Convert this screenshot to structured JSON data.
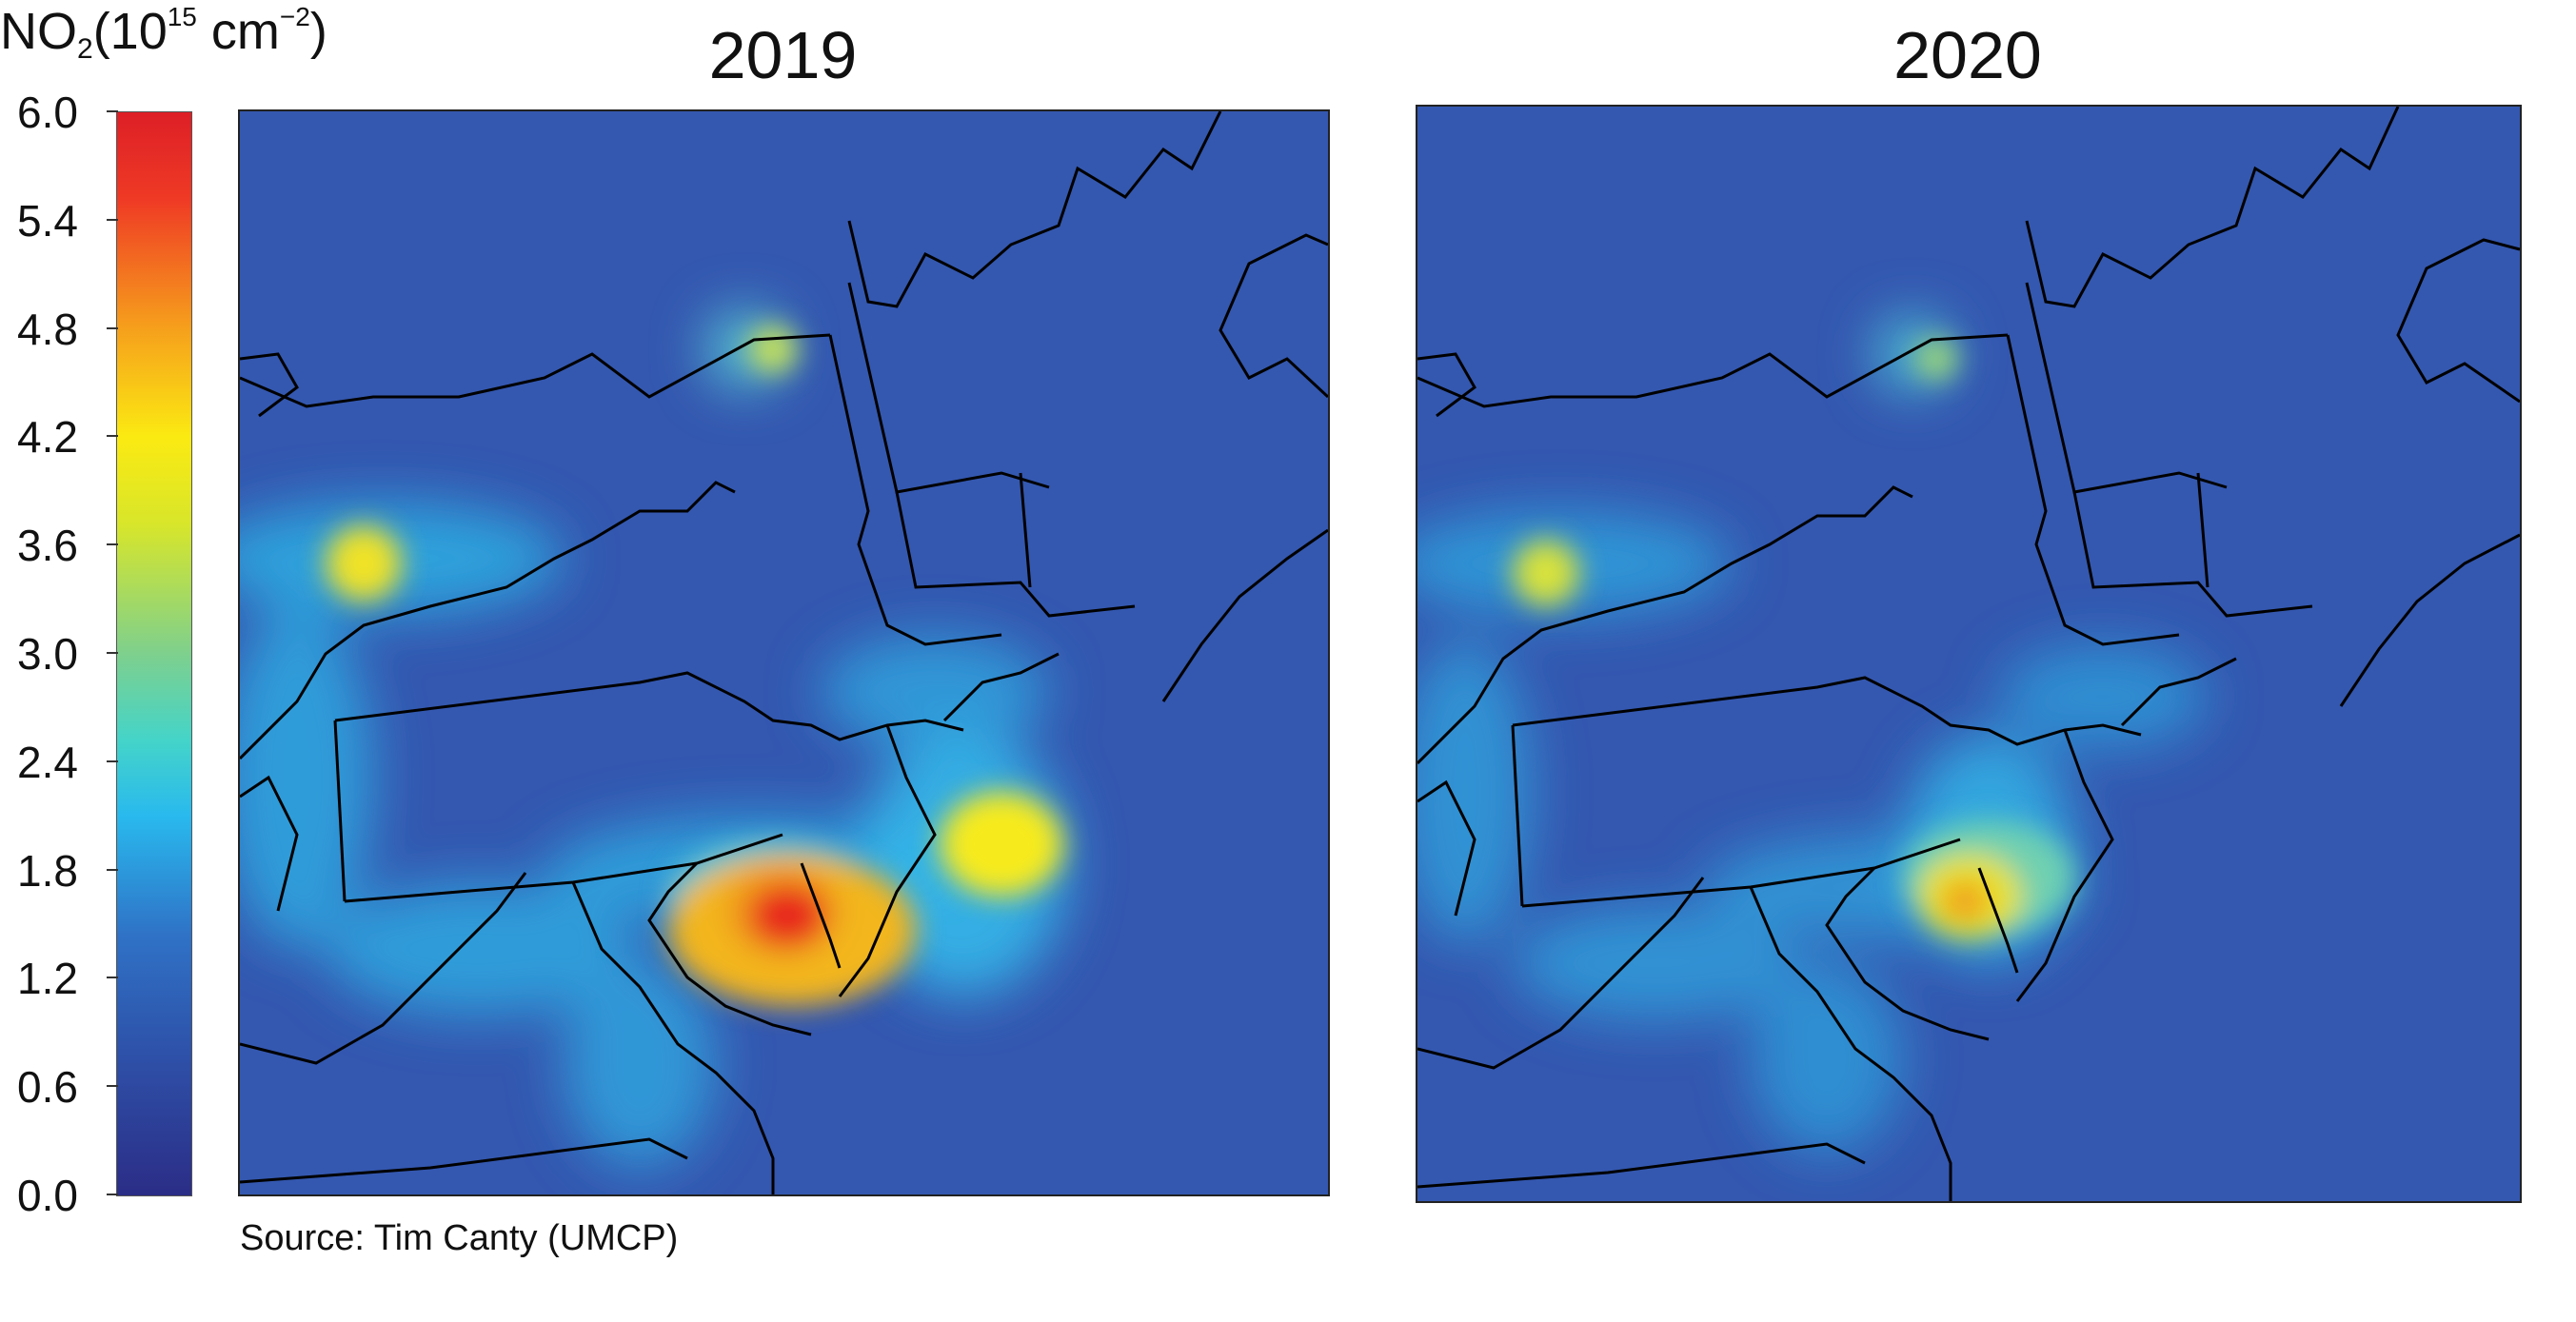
{
  "colorbar": {
    "title_main": "NO",
    "title_sub": "2",
    "title_unit_open": "(10",
    "title_exp": "15",
    "title_unit": " cm",
    "title_unit_exp": "−2",
    "title_close": ")",
    "ticks": [
      "6.0",
      "5.4",
      "4.8",
      "4.2",
      "3.6",
      "3.0",
      "2.4",
      "1.8",
      "1.2",
      "0.6",
      "0.0"
    ],
    "range": [
      0.0,
      6.0
    ],
    "colors": [
      "#2b2d86",
      "#2f72c6",
      "#29b9ee",
      "#7ed08d",
      "#fbea12",
      "#f6a01c",
      "#dd1f26"
    ]
  },
  "panels": [
    {
      "title": "2019",
      "background": "#3458b0"
    },
    {
      "title": "2020",
      "background": "#3458b0"
    }
  ],
  "source": "Source: Tim Canty (UMCP)"
}
